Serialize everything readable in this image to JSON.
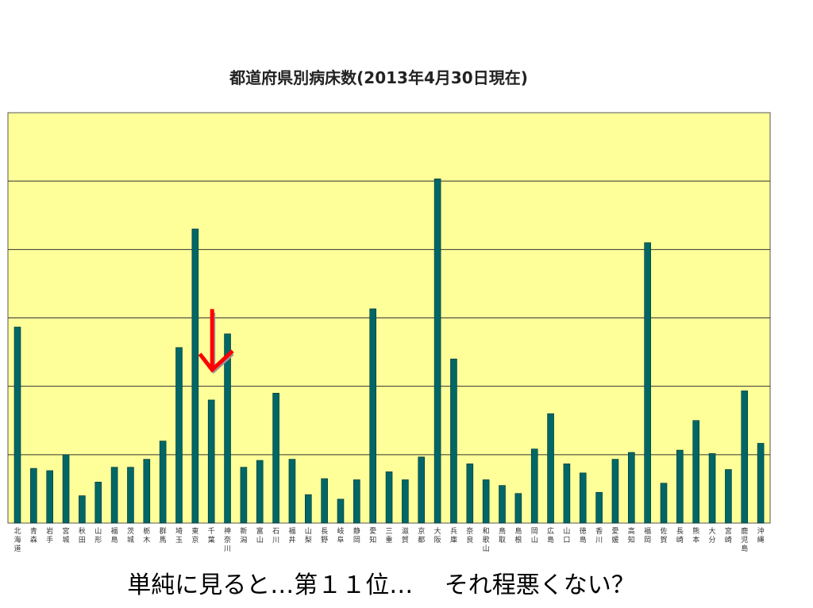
{
  "slide": {
    "caption": "単純に見ると…第１１位…　 それ程悪くない？"
  },
  "colors": {
    "plot_bg": "#FFFF99",
    "bar": "#006666",
    "gridline": "#333333",
    "arrow": "#FF0000"
  },
  "chart_data": {
    "type": "bar",
    "title": "都道府県別病床数(2013年4月30日現在)",
    "xlabel": "",
    "ylabel": "",
    "ylim": [
      0,
      180000
    ],
    "grid": true,
    "legend": "none",
    "highlight_category": "千葉",
    "categories": [
      "北海道",
      "青森",
      "岩手",
      "宮城",
      "秋田",
      "山形",
      "福島",
      "茨城",
      "栃木",
      "群馬",
      "埼玉",
      "東京",
      "千葉",
      "神奈川",
      "新潟",
      "富山",
      "石川",
      "福井",
      "山梨",
      "長野",
      "岐阜",
      "静岡",
      "愛知",
      "三重",
      "滋賀",
      "京都",
      "大阪",
      "兵庫",
      "奈良",
      "和歌山",
      "鳥取",
      "島根",
      "岡山",
      "広島",
      "山口",
      "徳島",
      "香川",
      "愛媛",
      "高知",
      "福岡",
      "佐賀",
      "長崎",
      "熊本",
      "大分",
      "宮崎",
      "鹿児島",
      "沖縄"
    ],
    "values": [
      86000,
      24000,
      23000,
      30000,
      12000,
      18000,
      24500,
      24500,
      28000,
      36000,
      77000,
      129000,
      54000,
      83000,
      24500,
      27500,
      57000,
      28000,
      12500,
      19500,
      10500,
      19000,
      94000,
      22500,
      19000,
      29000,
      151000,
      72000,
      26000,
      19000,
      16500,
      13000,
      32500,
      48000,
      26000,
      22000,
      13500,
      28000,
      31000,
      123000,
      17500,
      32000,
      45000,
      30500,
      23500,
      58000,
      35000
    ]
  }
}
